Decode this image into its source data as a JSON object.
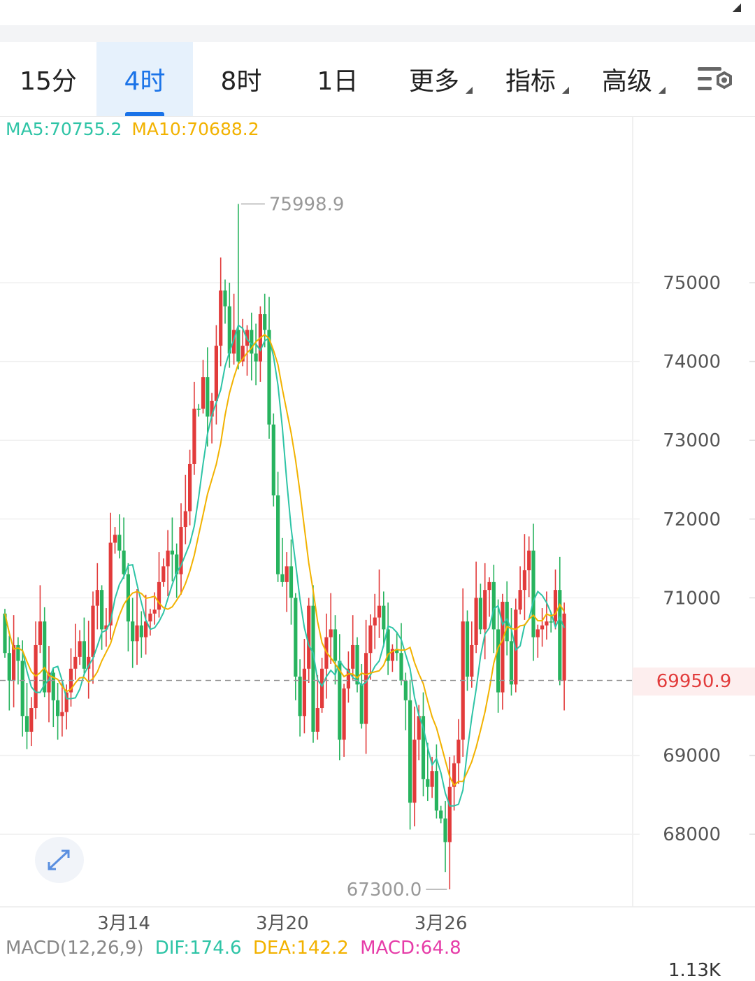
{
  "tabs": [
    {
      "label": "15分",
      "active": false,
      "dropdown": false
    },
    {
      "label": "4时",
      "active": true,
      "dropdown": false
    },
    {
      "label": "8时",
      "active": false,
      "dropdown": false
    },
    {
      "label": "1日",
      "active": false,
      "dropdown": false
    },
    {
      "label": "更多",
      "active": false,
      "dropdown": true
    },
    {
      "label": "指标",
      "active": false,
      "dropdown": true
    },
    {
      "label": "高级",
      "active": false,
      "dropdown": true
    }
  ],
  "settings_icon": "chart-settings-icon",
  "expand_icon": "expand-arrows-icon",
  "legend": {
    "ma5": "MA5:70755.2",
    "ma10": "MA10:70688.2"
  },
  "macd_legend": {
    "label": "MACD(12,26,9)",
    "dif": "DIF:174.6",
    "dea": "DEA:142.2",
    "macd": "MACD:64.8",
    "scale": "1.13K"
  },
  "colors": {
    "up": "#27b35e",
    "down": "#e23b3b",
    "ma5": "#2ec4a6",
    "ma10": "#f2b200",
    "active_tab": "#1a73e8",
    "macd": "#e63ca8"
  },
  "chart_data": {
    "type": "candlestick",
    "interval": "4时",
    "y_ticks": [
      75000,
      74000,
      73000,
      72000,
      71000,
      69000,
      68000
    ],
    "y_range": [
      67000,
      76300
    ],
    "x_tick_labels": [
      {
        "index": 27,
        "label": "3月14"
      },
      {
        "index": 63,
        "label": "3月20"
      },
      {
        "index": 99,
        "label": "3月26"
      }
    ],
    "high_label": "75998.9",
    "low_label": "67300.0",
    "current_price": 69950.9,
    "current_price_label": "69950.9",
    "ma5_last": 70755.2,
    "ma10_last": 70688.2,
    "closes": [
      70800,
      70300,
      69950,
      70400,
      70200,
      69500,
      69300,
      69600,
      70400,
      70700,
      69800,
      70050,
      69700,
      69500,
      69550,
      69800,
      70100,
      70250,
      70450,
      70100,
      70250,
      70900,
      71100,
      70600,
      70650,
      71700,
      71800,
      71600,
      71300,
      70700,
      70450,
      70650,
      70500,
      70700,
      70800,
      70850,
      71200,
      71400,
      71600,
      71550,
      71300,
      71900,
      72100,
      72700,
      73400,
      73400,
      73800,
      73300,
      73500,
      74200,
      74900,
      74700,
      74100,
      74400,
      74000,
      74200,
      74400,
      74100,
      74000,
      74600,
      74400,
      73200,
      72300,
      71300,
      71200,
      71400,
      71000,
      70000,
      69500,
      70100,
      70900,
      69300,
      69600,
      70100,
      70500,
      70600,
      70200,
      69200,
      69850,
      70100,
      70400,
      69900,
      69400,
      70300,
      70650,
      70750,
      70900,
      70600,
      70200,
      70350,
      70300,
      69950,
      69700,
      68400,
      69200,
      69500,
      68700,
      68600,
      68800,
      68300,
      68200,
      67900,
      68600,
      68900,
      69200,
      70700,
      70000,
      70400,
      71000,
      70600,
      71100,
      71200,
      70600,
      69800,
      70950,
      70450,
      69900,
      70850,
      71100,
      71350,
      71600,
      70500,
      70600,
      70650,
      70700,
      70700,
      71100,
      69950
    ],
    "opens": [
      70300,
      69950,
      70400,
      70200,
      69500,
      69300,
      69600,
      70400,
      70700,
      69800,
      70050,
      69700,
      69500,
      69550,
      69800,
      70100,
      70250,
      70450,
      70100,
      70250,
      70900,
      71100,
      70600,
      70650,
      71700,
      71800,
      71600,
      71300,
      70700,
      70450,
      70650,
      70500,
      70700,
      70800,
      70850,
      71200,
      71400,
      71600,
      71550,
      71300,
      71900,
      72100,
      72700,
      73400,
      73400,
      73800,
      73300,
      73500,
      74200,
      74900,
      74700,
      74100,
      74400,
      74000,
      74200,
      74400,
      74100,
      74000,
      74600,
      74400,
      73200,
      72300,
      71300,
      71200,
      71400,
      71000,
      70000,
      69500,
      70100,
      70900,
      69300,
      69600,
      70100,
      70500,
      70600,
      70200,
      69200,
      69850,
      70100,
      70400,
      69900,
      69400,
      70300,
      70650,
      70750,
      70900,
      70600,
      70200,
      70350,
      70300,
      69950,
      69700,
      68400,
      69200,
      69500,
      68700,
      68600,
      68800,
      68300,
      68200,
      67900,
      68600,
      68900,
      69200,
      70700,
      70000,
      70400,
      71000,
      70600,
      71100,
      71200,
      70600,
      69800,
      70950,
      70450,
      69900,
      70850,
      71100,
      71350,
      71600,
      70500,
      70600,
      70650,
      70700,
      70700,
      71100,
      69950,
      70800
    ]
  }
}
